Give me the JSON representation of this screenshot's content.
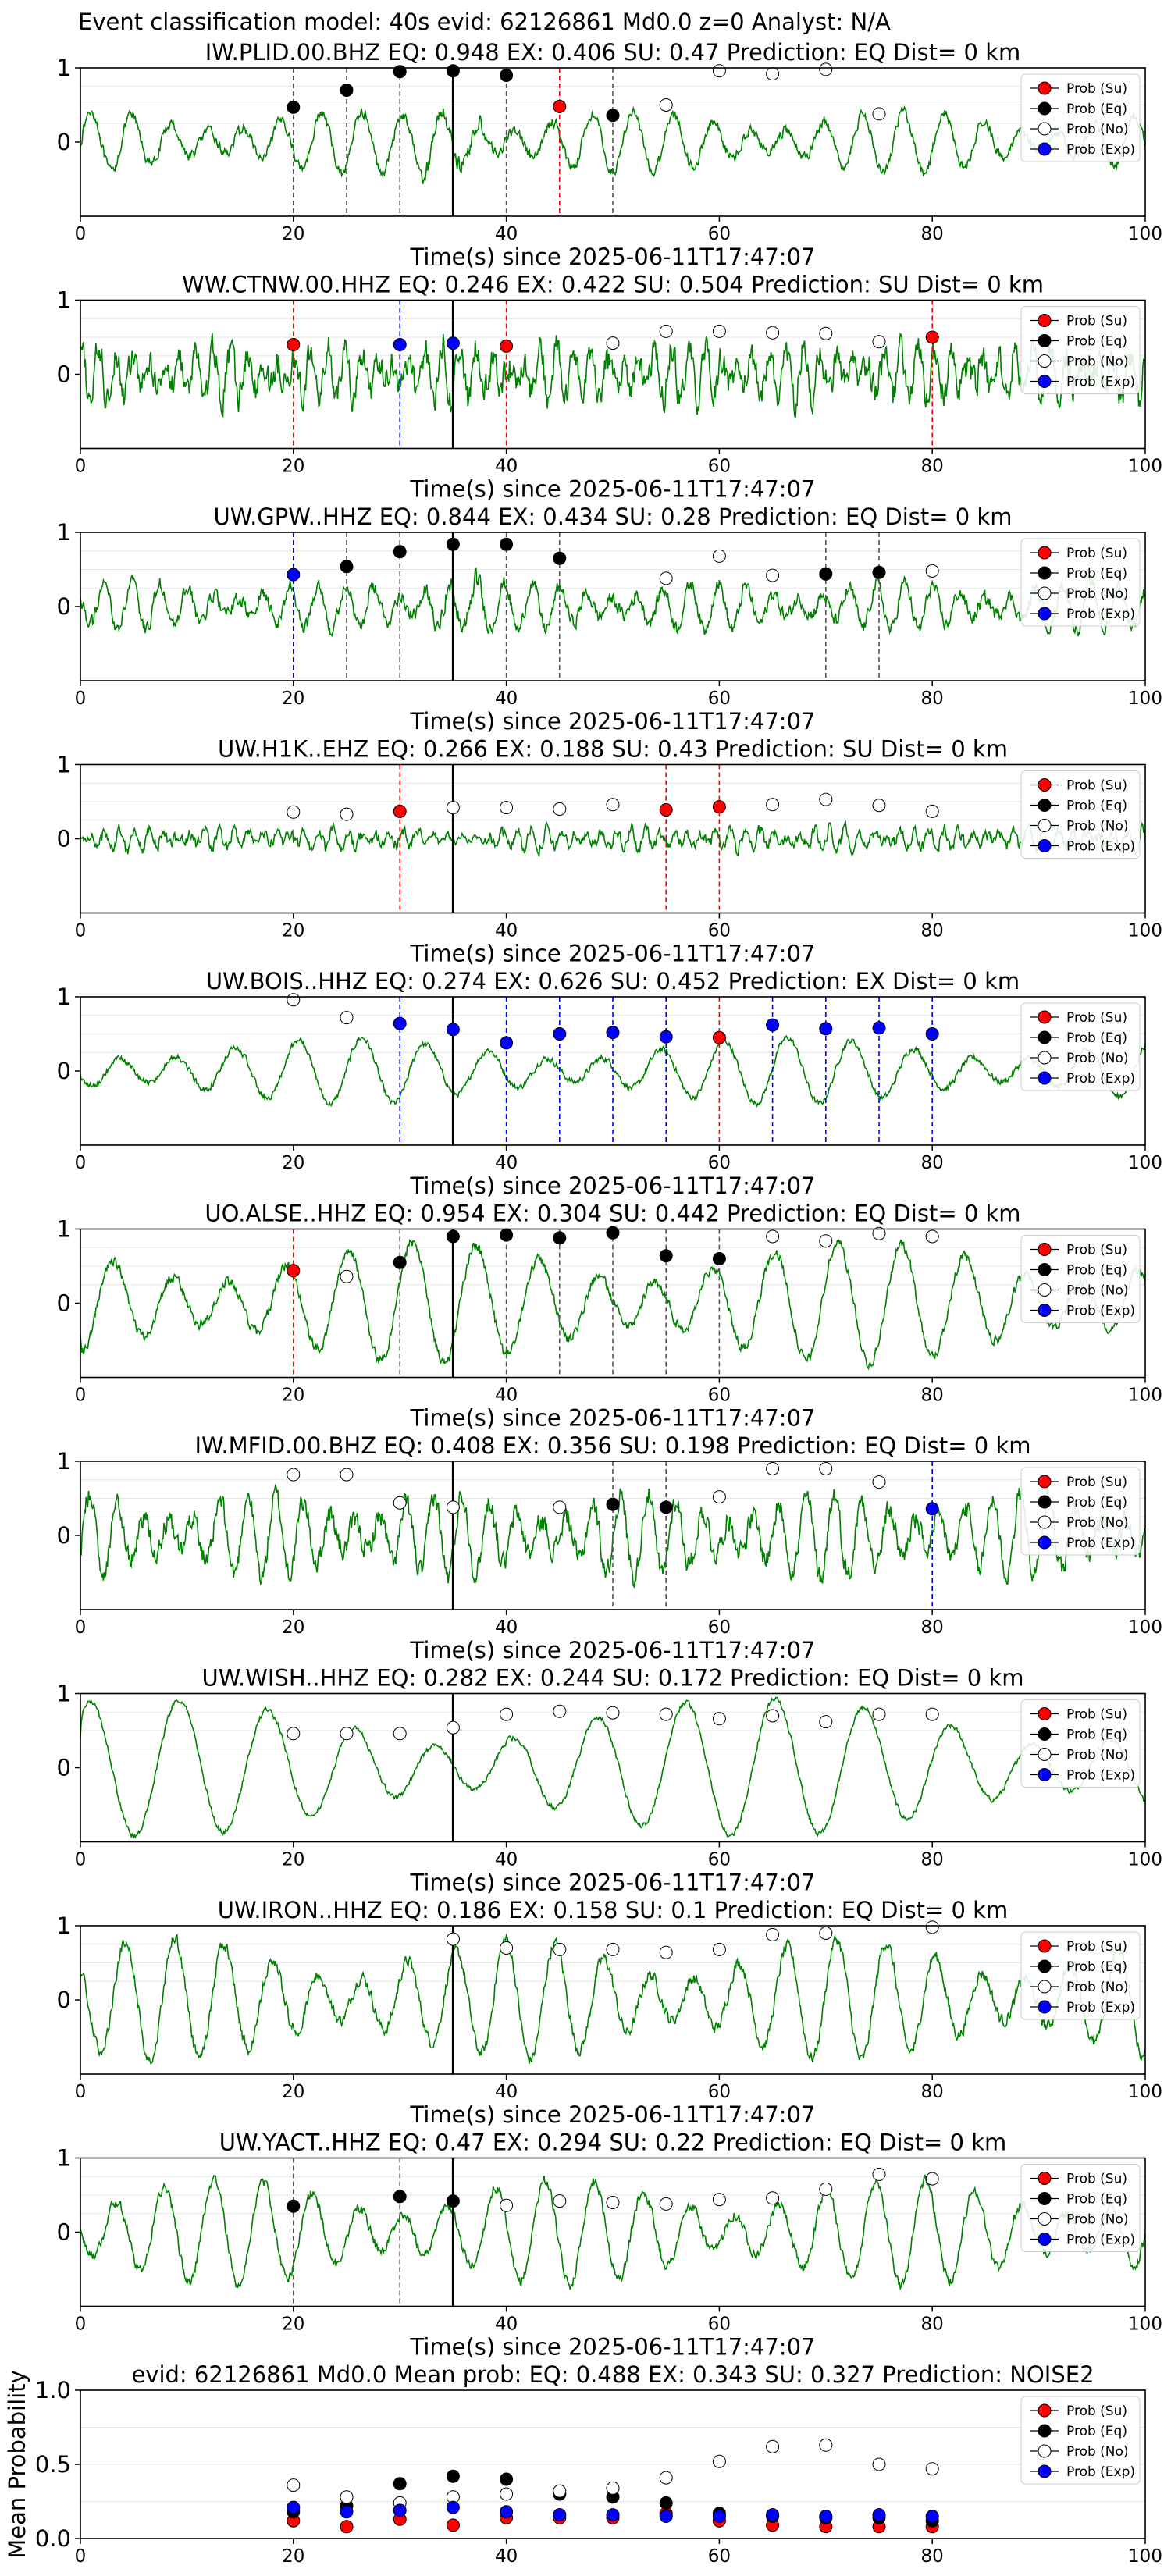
{
  "figure_title": "Event classification model: 40s evid: 62126861 Md0.0 z=0 Analyst: N/A",
  "legend_labels": [
    "Prob (Su)",
    "Prob (Eq)",
    "Prob (No)",
    "Prob (Exp)"
  ],
  "colors": {
    "su": "#ff0000",
    "eq": "#000000",
    "no": "#ffffff",
    "exp": "#0000ff",
    "trace": "#008000"
  },
  "chart_data": [
    {
      "type": "line",
      "title": "IW.PLID.00.BHZ    EQ: 0.948   EX: 0.406   SU: 0.47   Prediction: EQ    Dist= 0 km",
      "xlabel": "Time(s) since 2025-06-11T17:47:07",
      "xlim": [
        0,
        100
      ],
      "ylim": [
        -1,
        1
      ],
      "xticks": [
        0,
        20,
        40,
        60,
        80,
        100
      ],
      "yticks": [
        1,
        0
      ],
      "pick_time": 35,
      "probability_points": [
        {
          "x": 20,
          "y": 0.47,
          "class": "eq"
        },
        {
          "x": 25,
          "y": 0.7,
          "class": "eq"
        },
        {
          "x": 30,
          "y": 0.95,
          "class": "eq"
        },
        {
          "x": 35,
          "y": 0.96,
          "class": "eq"
        },
        {
          "x": 40,
          "y": 0.9,
          "class": "eq"
        },
        {
          "x": 45,
          "y": 0.48,
          "class": "su"
        },
        {
          "x": 50,
          "y": 0.36,
          "class": "eq"
        },
        {
          "x": 55,
          "y": 0.5,
          "class": "no"
        },
        {
          "x": 60,
          "y": 0.96,
          "class": "no"
        },
        {
          "x": 65,
          "y": 0.92,
          "class": "no"
        },
        {
          "x": 70,
          "y": 0.98,
          "class": "no"
        },
        {
          "x": 75,
          "y": 0.38,
          "class": "no"
        }
      ]
    },
    {
      "type": "line",
      "title": "WW.CTNW.00.HHZ    EQ: 0.246   EX: 0.422   SU: 0.504   Prediction: SU    Dist= 0 km",
      "xlabel": "Time(s) since 2025-06-11T17:47:07",
      "xlim": [
        0,
        100
      ],
      "ylim": [
        -1,
        1
      ],
      "xticks": [
        0,
        20,
        40,
        60,
        80,
        100
      ],
      "yticks": [
        1,
        0
      ],
      "pick_time": 35,
      "probability_points": [
        {
          "x": 20,
          "y": 0.4,
          "class": "su"
        },
        {
          "x": 30,
          "y": 0.4,
          "class": "exp"
        },
        {
          "x": 35,
          "y": 0.42,
          "class": "exp"
        },
        {
          "x": 40,
          "y": 0.38,
          "class": "su"
        },
        {
          "x": 50,
          "y": 0.42,
          "class": "no"
        },
        {
          "x": 55,
          "y": 0.58,
          "class": "no"
        },
        {
          "x": 60,
          "y": 0.58,
          "class": "no"
        },
        {
          "x": 65,
          "y": 0.56,
          "class": "no"
        },
        {
          "x": 70,
          "y": 0.55,
          "class": "no"
        },
        {
          "x": 75,
          "y": 0.44,
          "class": "no"
        },
        {
          "x": 80,
          "y": 0.5,
          "class": "su"
        }
      ]
    },
    {
      "type": "line",
      "title": "UW.GPW..HHZ    EQ: 0.844   EX: 0.434   SU: 0.28    Prediction: EQ    Dist= 0 km",
      "xlabel": "Time(s) since 2025-06-11T17:47:07",
      "xlim": [
        0,
        100
      ],
      "ylim": [
        -1,
        1
      ],
      "xticks": [
        0,
        20,
        40,
        60,
        80,
        100
      ],
      "yticks": [
        1,
        0
      ],
      "pick_time": 35,
      "probability_points": [
        {
          "x": 20,
          "y": 0.43,
          "class": "exp"
        },
        {
          "x": 25,
          "y": 0.54,
          "class": "eq"
        },
        {
          "x": 30,
          "y": 0.74,
          "class": "eq"
        },
        {
          "x": 35,
          "y": 0.84,
          "class": "eq"
        },
        {
          "x": 40,
          "y": 0.84,
          "class": "eq"
        },
        {
          "x": 45,
          "y": 0.65,
          "class": "eq"
        },
        {
          "x": 55,
          "y": 0.38,
          "class": "no"
        },
        {
          "x": 60,
          "y": 0.68,
          "class": "no"
        },
        {
          "x": 65,
          "y": 0.42,
          "class": "no"
        },
        {
          "x": 70,
          "y": 0.44,
          "class": "eq"
        },
        {
          "x": 75,
          "y": 0.46,
          "class": "eq"
        },
        {
          "x": 80,
          "y": 0.48,
          "class": "no"
        }
      ]
    },
    {
      "type": "line",
      "title": "UW.H1K..EHZ    EQ: 0.266   EX: 0.188   SU: 0.43    Prediction: SU    Dist= 0 km",
      "xlabel": "Time(s) since 2025-06-11T17:47:07",
      "xlim": [
        0,
        100
      ],
      "ylim": [
        -1,
        1
      ],
      "xticks": [
        0,
        20,
        40,
        60,
        80,
        100
      ],
      "yticks": [
        1,
        0
      ],
      "pick_time": 35,
      "probability_points": [
        {
          "x": 20,
          "y": 0.36,
          "class": "no"
        },
        {
          "x": 25,
          "y": 0.33,
          "class": "no"
        },
        {
          "x": 30,
          "y": 0.37,
          "class": "su"
        },
        {
          "x": 35,
          "y": 0.42,
          "class": "no"
        },
        {
          "x": 40,
          "y": 0.42,
          "class": "no"
        },
        {
          "x": 45,
          "y": 0.4,
          "class": "no"
        },
        {
          "x": 50,
          "y": 0.46,
          "class": "no"
        },
        {
          "x": 55,
          "y": 0.39,
          "class": "su"
        },
        {
          "x": 60,
          "y": 0.43,
          "class": "su"
        },
        {
          "x": 65,
          "y": 0.46,
          "class": "no"
        },
        {
          "x": 70,
          "y": 0.53,
          "class": "no"
        },
        {
          "x": 75,
          "y": 0.45,
          "class": "no"
        },
        {
          "x": 80,
          "y": 0.37,
          "class": "no"
        }
      ]
    },
    {
      "type": "line",
      "title": "UW.BOIS..HHZ    EQ: 0.274   EX: 0.626   SU: 0.452   Prediction: EX    Dist= 0 km",
      "xlabel": "Time(s) since 2025-06-11T17:47:07",
      "xlim": [
        0,
        100
      ],
      "ylim": [
        -1,
        1
      ],
      "xticks": [
        0,
        20,
        40,
        60,
        80,
        100
      ],
      "yticks": [
        1,
        0
      ],
      "pick_time": 35,
      "probability_points": [
        {
          "x": 20,
          "y": 0.96,
          "class": "no"
        },
        {
          "x": 25,
          "y": 0.72,
          "class": "no"
        },
        {
          "x": 30,
          "y": 0.64,
          "class": "exp"
        },
        {
          "x": 35,
          "y": 0.56,
          "class": "exp"
        },
        {
          "x": 40,
          "y": 0.38,
          "class": "exp"
        },
        {
          "x": 45,
          "y": 0.5,
          "class": "exp"
        },
        {
          "x": 50,
          "y": 0.52,
          "class": "exp"
        },
        {
          "x": 55,
          "y": 0.46,
          "class": "exp"
        },
        {
          "x": 60,
          "y": 0.45,
          "class": "su"
        },
        {
          "x": 65,
          "y": 0.62,
          "class": "exp"
        },
        {
          "x": 70,
          "y": 0.57,
          "class": "exp"
        },
        {
          "x": 75,
          "y": 0.58,
          "class": "exp"
        },
        {
          "x": 80,
          "y": 0.5,
          "class": "exp"
        }
      ]
    },
    {
      "type": "line",
      "title": "UO.ALSE..HHZ    EQ: 0.954   EX: 0.304   SU: 0.442   Prediction: EQ    Dist= 0 km",
      "xlabel": "Time(s) since 2025-06-11T17:47:07",
      "xlim": [
        0,
        100
      ],
      "ylim": [
        -1,
        1
      ],
      "xticks": [
        0,
        20,
        40,
        60,
        80,
        100
      ],
      "yticks": [
        1,
        0
      ],
      "pick_time": 35,
      "probability_points": [
        {
          "x": 20,
          "y": 0.44,
          "class": "su"
        },
        {
          "x": 25,
          "y": 0.36,
          "class": "no"
        },
        {
          "x": 30,
          "y": 0.55,
          "class": "eq"
        },
        {
          "x": 35,
          "y": 0.9,
          "class": "eq"
        },
        {
          "x": 40,
          "y": 0.92,
          "class": "eq"
        },
        {
          "x": 45,
          "y": 0.88,
          "class": "eq"
        },
        {
          "x": 50,
          "y": 0.95,
          "class": "eq"
        },
        {
          "x": 55,
          "y": 0.64,
          "class": "eq"
        },
        {
          "x": 60,
          "y": 0.6,
          "class": "eq"
        },
        {
          "x": 65,
          "y": 0.9,
          "class": "no"
        },
        {
          "x": 70,
          "y": 0.84,
          "class": "no"
        },
        {
          "x": 75,
          "y": 0.94,
          "class": "no"
        },
        {
          "x": 80,
          "y": 0.9,
          "class": "no"
        }
      ]
    },
    {
      "type": "line",
      "title": "IW.MFID.00.BHZ    EQ: 0.408   EX: 0.356   SU: 0.198   Prediction: EQ    Dist= 0 km",
      "xlabel": "Time(s) since 2025-06-11T17:47:07",
      "xlim": [
        0,
        100
      ],
      "ylim": [
        -1,
        1
      ],
      "xticks": [
        0,
        20,
        40,
        60,
        80,
        100
      ],
      "yticks": [
        1,
        0
      ],
      "pick_time": 35,
      "probability_points": [
        {
          "x": 20,
          "y": 0.82,
          "class": "no"
        },
        {
          "x": 25,
          "y": 0.82,
          "class": "no"
        },
        {
          "x": 30,
          "y": 0.44,
          "class": "no"
        },
        {
          "x": 35,
          "y": 0.38,
          "class": "no"
        },
        {
          "x": 45,
          "y": 0.38,
          "class": "no"
        },
        {
          "x": 50,
          "y": 0.42,
          "class": "eq"
        },
        {
          "x": 55,
          "y": 0.38,
          "class": "eq"
        },
        {
          "x": 60,
          "y": 0.52,
          "class": "no"
        },
        {
          "x": 65,
          "y": 0.9,
          "class": "no"
        },
        {
          "x": 70,
          "y": 0.9,
          "class": "no"
        },
        {
          "x": 75,
          "y": 0.72,
          "class": "no"
        },
        {
          "x": 80,
          "y": 0.36,
          "class": "exp"
        }
      ]
    },
    {
      "type": "line",
      "title": "UW.WISH..HHZ    EQ: 0.282   EX: 0.244   SU: 0.172   Prediction: EQ    Dist= 0 km",
      "xlabel": "Time(s) since 2025-06-11T17:47:07",
      "xlim": [
        0,
        100
      ],
      "ylim": [
        -1,
        1
      ],
      "xticks": [
        0,
        20,
        40,
        60,
        80,
        100
      ],
      "yticks": [
        1,
        0
      ],
      "pick_time": 35,
      "probability_points": [
        {
          "x": 20,
          "y": 0.46,
          "class": "no"
        },
        {
          "x": 25,
          "y": 0.46,
          "class": "no"
        },
        {
          "x": 30,
          "y": 0.46,
          "class": "no"
        },
        {
          "x": 35,
          "y": 0.54,
          "class": "no"
        },
        {
          "x": 40,
          "y": 0.72,
          "class": "no"
        },
        {
          "x": 45,
          "y": 0.76,
          "class": "no"
        },
        {
          "x": 50,
          "y": 0.74,
          "class": "no"
        },
        {
          "x": 55,
          "y": 0.72,
          "class": "no"
        },
        {
          "x": 60,
          "y": 0.66,
          "class": "no"
        },
        {
          "x": 65,
          "y": 0.7,
          "class": "no"
        },
        {
          "x": 70,
          "y": 0.62,
          "class": "no"
        },
        {
          "x": 75,
          "y": 0.72,
          "class": "no"
        },
        {
          "x": 80,
          "y": 0.72,
          "class": "no"
        }
      ]
    },
    {
      "type": "line",
      "title": "UW.IRON..HHZ    EQ: 0.186   EX: 0.158   SU: 0.1    Prediction: EQ    Dist= 0 km",
      "xlabel": "Time(s) since 2025-06-11T17:47:07",
      "xlim": [
        0,
        100
      ],
      "ylim": [
        -1,
        1
      ],
      "xticks": [
        0,
        20,
        40,
        60,
        80,
        100
      ],
      "yticks": [
        1,
        0
      ],
      "pick_time": 35,
      "probability_points": [
        {
          "x": 35,
          "y": 0.82,
          "class": "no"
        },
        {
          "x": 40,
          "y": 0.7,
          "class": "no"
        },
        {
          "x": 45,
          "y": 0.68,
          "class": "no"
        },
        {
          "x": 50,
          "y": 0.68,
          "class": "no"
        },
        {
          "x": 55,
          "y": 0.64,
          "class": "no"
        },
        {
          "x": 60,
          "y": 0.68,
          "class": "no"
        },
        {
          "x": 65,
          "y": 0.88,
          "class": "no"
        },
        {
          "x": 70,
          "y": 0.9,
          "class": "no"
        },
        {
          "x": 80,
          "y": 0.98,
          "class": "no"
        }
      ]
    },
    {
      "type": "line",
      "title": "UW.YACT..HHZ    EQ: 0.47   EX: 0.294   SU: 0.22    Prediction: EQ    Dist= 0 km",
      "xlabel": "Time(s) since 2025-06-11T17:47:07",
      "xlim": [
        0,
        100
      ],
      "ylim": [
        -1,
        1
      ],
      "xticks": [
        0,
        20,
        40,
        60,
        80,
        100
      ],
      "yticks": [
        1,
        0
      ],
      "pick_time": 35,
      "probability_points": [
        {
          "x": 20,
          "y": 0.35,
          "class": "eq"
        },
        {
          "x": 30,
          "y": 0.48,
          "class": "eq"
        },
        {
          "x": 35,
          "y": 0.42,
          "class": "eq"
        },
        {
          "x": 40,
          "y": 0.36,
          "class": "no"
        },
        {
          "x": 45,
          "y": 0.42,
          "class": "no"
        },
        {
          "x": 50,
          "y": 0.4,
          "class": "no"
        },
        {
          "x": 55,
          "y": 0.38,
          "class": "no"
        },
        {
          "x": 60,
          "y": 0.44,
          "class": "no"
        },
        {
          "x": 65,
          "y": 0.46,
          "class": "no"
        },
        {
          "x": 70,
          "y": 0.58,
          "class": "no"
        },
        {
          "x": 75,
          "y": 0.78,
          "class": "no"
        },
        {
          "x": 80,
          "y": 0.72,
          "class": "no"
        }
      ]
    },
    {
      "type": "scatter",
      "title": "evid: 62126861  Md0.0   Mean prob:   EQ: 0.488  EX: 0.343  SU: 0.327   Prediction: NOISE2",
      "xlabel": "",
      "ylabel": "Mean Probability",
      "xlim": [
        0,
        100
      ],
      "ylim": [
        0,
        1
      ],
      "xticks": [
        0,
        20,
        40,
        60,
        80,
        100
      ],
      "yticks": [
        0.0,
        0.5,
        1.0
      ],
      "x": [
        20,
        25,
        30,
        35,
        40,
        45,
        50,
        55,
        60,
        65,
        70,
        75,
        80
      ],
      "series": [
        {
          "name": "Prob (Su)",
          "class": "su",
          "values": [
            0.12,
            0.08,
            0.13,
            0.09,
            0.14,
            0.14,
            0.14,
            0.17,
            0.12,
            0.09,
            0.08,
            0.08,
            0.08
          ]
        },
        {
          "name": "Prob (Eq)",
          "class": "eq",
          "values": [
            0.18,
            0.22,
            0.37,
            0.42,
            0.4,
            0.3,
            0.28,
            0.24,
            0.17,
            0.15,
            0.14,
            0.14,
            0.12
          ]
        },
        {
          "name": "Prob (No)",
          "class": "no",
          "values": [
            0.36,
            0.28,
            0.24,
            0.28,
            0.3,
            0.32,
            0.34,
            0.41,
            0.52,
            0.62,
            0.63,
            0.5,
            0.47
          ]
        },
        {
          "name": "Prob (Exp)",
          "class": "exp",
          "values": [
            0.21,
            0.18,
            0.19,
            0.21,
            0.18,
            0.16,
            0.16,
            0.15,
            0.15,
            0.16,
            0.15,
            0.16,
            0.15
          ]
        }
      ]
    }
  ]
}
